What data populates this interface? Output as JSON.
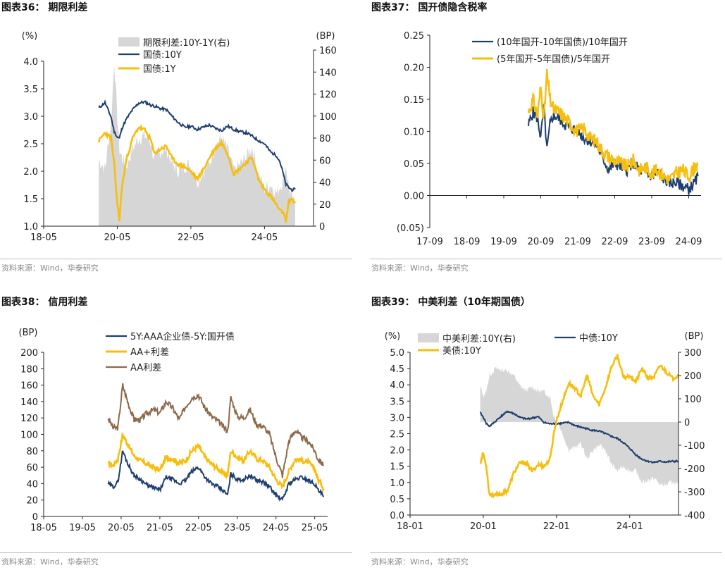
{
  "colors": {
    "navy": "#1F3F6E",
    "yellow": "#F6BE0E",
    "brown": "#8C6B4A",
    "gray": "#D6D6D6",
    "axis": "#222222"
  },
  "source_text": "资料来源：Wind，华泰研究",
  "chart_data": [
    {
      "id": "c36",
      "type": "line",
      "title": "图表36： 期限利差",
      "left_unit": "(%)",
      "right_unit": "(BP)",
      "xlim": [
        0,
        88
      ],
      "x_ticks": [
        {
          "v": 0,
          "label": "18-05"
        },
        {
          "v": 24,
          "label": "20-05"
        },
        {
          "v": 48,
          "label": "22-05"
        },
        {
          "v": 72,
          "label": "24-05"
        }
      ],
      "ylim": [
        1.0,
        4.0
      ],
      "y_ticks": [
        {
          "v": 1.0,
          "label": "1.0"
        },
        {
          "v": 1.5,
          "label": "1.5"
        },
        {
          "v": 2.0,
          "label": "2.0"
        },
        {
          "v": 2.5,
          "label": "2.5"
        },
        {
          "v": 3.0,
          "label": "3.0"
        },
        {
          "v": 3.5,
          "label": "3.5"
        },
        {
          "v": 4.0,
          "label": "4.0"
        }
      ],
      "y2lim": [
        0,
        160
      ],
      "y2_ticks": [
        {
          "v": 0,
          "label": "0"
        },
        {
          "v": 20,
          "label": "20"
        },
        {
          "v": 40,
          "label": "40"
        },
        {
          "v": 60,
          "label": "60"
        },
        {
          "v": 80,
          "label": "80"
        },
        {
          "v": 100,
          "label": "100"
        },
        {
          "v": 120,
          "label": "120"
        },
        {
          "v": 140,
          "label": "140"
        },
        {
          "v": 160,
          "label": "160"
        }
      ],
      "legend": [
        "期限利差:10Y-1Y(右)",
        "国债:10Y",
        "国债:1Y"
      ],
      "x": [
        18,
        20,
        22,
        23,
        24,
        24.7,
        25.5,
        27,
        29,
        31,
        33,
        35,
        36,
        38,
        40,
        42,
        44,
        46,
        48,
        50,
        52,
        54,
        56,
        58,
        60,
        62,
        64,
        66,
        68,
        70,
        72,
        74,
        76,
        77,
        78,
        79,
        80,
        81,
        82
      ],
      "spread": [
        60,
        52,
        95,
        150,
        100,
        70,
        62,
        55,
        70,
        80,
        82,
        76,
        60,
        68,
        70,
        56,
        50,
        55,
        56,
        40,
        50,
        56,
        74,
        80,
        70,
        50,
        56,
        62,
        72,
        48,
        34,
        38,
        30,
        36,
        42,
        56,
        34,
        24,
        20
      ],
      "ten_y": [
        3.15,
        3.25,
        2.98,
        2.72,
        2.62,
        2.6,
        2.78,
        2.95,
        3.12,
        3.24,
        3.26,
        3.2,
        3.19,
        3.14,
        3.12,
        2.99,
        2.88,
        2.8,
        2.82,
        2.76,
        2.8,
        2.84,
        2.78,
        2.74,
        2.82,
        2.76,
        2.72,
        2.7,
        2.64,
        2.56,
        2.5,
        2.35,
        2.28,
        2.18,
        1.98,
        1.76,
        1.7,
        1.66,
        1.67
      ],
      "one_y": [
        2.55,
        2.7,
        2.6,
        2.12,
        1.4,
        1.12,
        1.7,
        2.22,
        2.6,
        2.8,
        2.75,
        2.56,
        2.32,
        2.4,
        2.46,
        2.22,
        2.12,
        2.08,
        2.0,
        1.86,
        2.02,
        2.24,
        2.42,
        2.52,
        2.32,
        1.95,
        2.05,
        2.16,
        2.25,
        1.86,
        1.67,
        1.55,
        1.38,
        1.28,
        1.26,
        1.1,
        1.46,
        1.5,
        1.42
      ]
    },
    {
      "id": "c37",
      "type": "line",
      "title": "图表37： 国开债隐含税率",
      "xlim": [
        0,
        88
      ],
      "x_ticks": [
        {
          "v": 0,
          "label": "17-09"
        },
        {
          "v": 12,
          "label": "18-09"
        },
        {
          "v": 24,
          "label": "19-09"
        },
        {
          "v": 36,
          "label": "20-09"
        },
        {
          "v": 48,
          "label": "21-09"
        },
        {
          "v": 60,
          "label": "22-09"
        },
        {
          "v": 72,
          "label": "23-09"
        },
        {
          "v": 84,
          "label": "24-09"
        }
      ],
      "ylim": [
        -0.05,
        0.25
      ],
      "y_ticks": [
        {
          "v": -0.05,
          "label": "(0.05)"
        },
        {
          "v": 0,
          "label": "0.00"
        },
        {
          "v": 0.05,
          "label": "0.05"
        },
        {
          "v": 0.1,
          "label": "0.10"
        },
        {
          "v": 0.15,
          "label": "0.15"
        },
        {
          "v": 0.2,
          "label": "0.20"
        },
        {
          "v": 0.25,
          "label": "0.25"
        }
      ],
      "legend": [
        "(10年国开-10年国债)/10年国开",
        "(5年国开-5年国债)/5年国开"
      ],
      "x": [
        32,
        33.5,
        35,
        36,
        37,
        38,
        39,
        40,
        42,
        44,
        46,
        48,
        50,
        52,
        54,
        56,
        58,
        60,
        62,
        64,
        66,
        68,
        70,
        72,
        74,
        76,
        78,
        80,
        82,
        84,
        86,
        87
      ],
      "ten": [
        0.11,
        0.13,
        0.12,
        0.09,
        0.14,
        0.07,
        0.11,
        0.125,
        0.12,
        0.11,
        0.105,
        0.1,
        0.09,
        0.085,
        0.08,
        0.06,
        0.04,
        0.05,
        0.045,
        0.04,
        0.05,
        0.04,
        0.035,
        0.03,
        0.035,
        0.025,
        0.02,
        0.02,
        0.015,
        0.01,
        0.02,
        0.03
      ],
      "five": [
        0.13,
        0.15,
        0.125,
        0.17,
        0.12,
        0.19,
        0.15,
        0.135,
        0.13,
        0.12,
        0.11,
        0.1,
        0.105,
        0.09,
        0.085,
        0.07,
        0.06,
        0.055,
        0.05,
        0.045,
        0.055,
        0.04,
        0.045,
        0.035,
        0.04,
        0.03,
        0.025,
        0.035,
        0.04,
        0.03,
        0.045,
        0.05
      ]
    },
    {
      "id": "c38",
      "type": "line",
      "title": "图表38： 信用利差",
      "left_unit": "(BP)",
      "xlim": [
        0,
        88
      ],
      "x_ticks": [
        {
          "v": 0,
          "label": "18-05"
        },
        {
          "v": 12,
          "label": "19-05"
        },
        {
          "v": 24,
          "label": "20-05"
        },
        {
          "v": 36,
          "label": "21-05"
        },
        {
          "v": 48,
          "label": "22-05"
        },
        {
          "v": 60,
          "label": "23-05"
        },
        {
          "v": 72,
          "label": "24-05"
        },
        {
          "v": 84,
          "label": "25-05"
        }
      ],
      "ylim": [
        0,
        200
      ],
      "y_ticks": [
        {
          "v": 0,
          "label": "0"
        },
        {
          "v": 20,
          "label": "20"
        },
        {
          "v": 40,
          "label": "40"
        },
        {
          "v": 60,
          "label": "60"
        },
        {
          "v": 80,
          "label": "80"
        },
        {
          "v": 100,
          "label": "100"
        },
        {
          "v": 120,
          "label": "120"
        },
        {
          "v": 140,
          "label": "140"
        },
        {
          "v": 160,
          "label": "160"
        },
        {
          "v": 180,
          "label": "180"
        },
        {
          "v": 200,
          "label": "200"
        }
      ],
      "legend": [
        "5Y:AAA企业债-5Y:国开债",
        "AA+利差",
        "AA利差"
      ],
      "x": [
        20,
        21.5,
        23,
        24.5,
        26,
        28,
        30,
        32,
        34,
        36,
        38,
        40,
        42,
        44,
        46,
        48,
        50,
        52,
        54,
        56,
        57,
        58,
        60,
        62,
        64,
        66,
        68,
        70,
        72,
        74,
        76,
        78,
        80,
        82,
        84,
        85,
        86,
        86.8
      ],
      "aaa": [
        40,
        36,
        42,
        80,
        65,
        50,
        45,
        38,
        35,
        32,
        48,
        45,
        40,
        44,
        55,
        60,
        48,
        40,
        36,
        30,
        26,
        52,
        45,
        45,
        50,
        44,
        42,
        36,
        26,
        20,
        40,
        45,
        48,
        44,
        40,
        32,
        28,
        24
      ],
      "aaplus": [
        65,
        62,
        70,
        100,
        88,
        74,
        68,
        64,
        60,
        56,
        72,
        70,
        65,
        68,
        80,
        86,
        72,
        64,
        58,
        52,
        50,
        80,
        72,
        68,
        80,
        70,
        68,
        60,
        45,
        36,
        55,
        70,
        68,
        66,
        58,
        45,
        40,
        34
      ],
      "aa": [
        120,
        108,
        108,
        160,
        140,
        118,
        118,
        126,
        130,
        126,
        140,
        132,
        118,
        134,
        145,
        148,
        132,
        122,
        116,
        108,
        104,
        145,
        122,
        120,
        130,
        112,
        110,
        100,
        72,
        50,
        92,
        105,
        96,
        92,
        80,
        70,
        66,
        62
      ]
    },
    {
      "id": "c39",
      "type": "line",
      "title": "图表39： 中美利差（10年期国债）",
      "left_unit": "(%)",
      "right_unit": "(BP)",
      "xlim": [
        0,
        88
      ],
      "x_ticks": [
        {
          "v": 0,
          "label": "18-01"
        },
        {
          "v": 24,
          "label": "20-01"
        },
        {
          "v": 48,
          "label": "22-01"
        },
        {
          "v": 72,
          "label": "24-01"
        }
      ],
      "ylim": [
        0.0,
        5.0
      ],
      "y_ticks": [
        {
          "v": 0.0,
          "label": "0.0"
        },
        {
          "v": 0.5,
          "label": "0.5"
        },
        {
          "v": 1.0,
          "label": "1.0"
        },
        {
          "v": 1.5,
          "label": "1.5"
        },
        {
          "v": 2.0,
          "label": "2.0"
        },
        {
          "v": 2.5,
          "label": "2.5"
        },
        {
          "v": 3.0,
          "label": "3.0"
        },
        {
          "v": 3.5,
          "label": "3.5"
        },
        {
          "v": 4.0,
          "label": "4.0"
        },
        {
          "v": 4.5,
          "label": "4.5"
        },
        {
          "v": 5.0,
          "label": "5.0"
        }
      ],
      "y2lim": [
        -400,
        300
      ],
      "y2_ticks": [
        {
          "v": -400,
          "label": "-400"
        },
        {
          "v": -300,
          "label": "-300"
        },
        {
          "v": -200,
          "label": "-200"
        },
        {
          "v": -100,
          "label": "-100"
        },
        {
          "v": 0,
          "label": "0"
        },
        {
          "v": 100,
          "label": "100"
        },
        {
          "v": 200,
          "label": "200"
        },
        {
          "v": 300,
          "label": "300"
        }
      ],
      "legend": [
        "中美利差:10Y(右)",
        "中债:10Y",
        "美债:10Y"
      ],
      "x": [
        23,
        24,
        25,
        26,
        28,
        30,
        32,
        34,
        36,
        38,
        40,
        42,
        44,
        46,
        47,
        48,
        50,
        52,
        54,
        56,
        58,
        60,
        62,
        64,
        66,
        68,
        70,
        72,
        74,
        76,
        78,
        80,
        82,
        84,
        86,
        88
      ],
      "cn": [
        3.15,
        3.0,
        2.82,
        2.72,
        2.88,
        3.05,
        3.18,
        3.12,
        3.0,
        2.95,
        2.98,
        3.02,
        2.84,
        2.8,
        2.82,
        2.8,
        2.82,
        2.85,
        2.75,
        2.7,
        2.65,
        2.6,
        2.58,
        2.5,
        2.42,
        2.35,
        2.22,
        2.05,
        1.85,
        1.72,
        1.65,
        1.62,
        1.65,
        1.63,
        1.65,
        1.65
      ],
      "us": [
        1.6,
        1.9,
        1.5,
        0.65,
        0.62,
        0.65,
        0.75,
        1.3,
        1.6,
        1.6,
        1.35,
        1.55,
        1.5,
        1.75,
        2.45,
        2.9,
        3.5,
        4.05,
        3.9,
        3.65,
        4.3,
        3.65,
        3.4,
        3.9,
        4.55,
        4.9,
        4.2,
        4.3,
        4.1,
        4.5,
        4.2,
        4.25,
        4.6,
        4.4,
        4.2,
        4.3
      ],
      "spread": [
        150,
        115,
        130,
        200,
        230,
        225,
        220,
        200,
        155,
        135,
        150,
        135,
        130,
        105,
        30,
        10,
        -50,
        -120,
        -110,
        -90,
        -160,
        -120,
        -100,
        -120,
        -180,
        -210,
        -190,
        -210,
        -210,
        -260,
        -250,
        -240,
        -270,
        -270,
        -255,
        -275
      ]
    }
  ]
}
